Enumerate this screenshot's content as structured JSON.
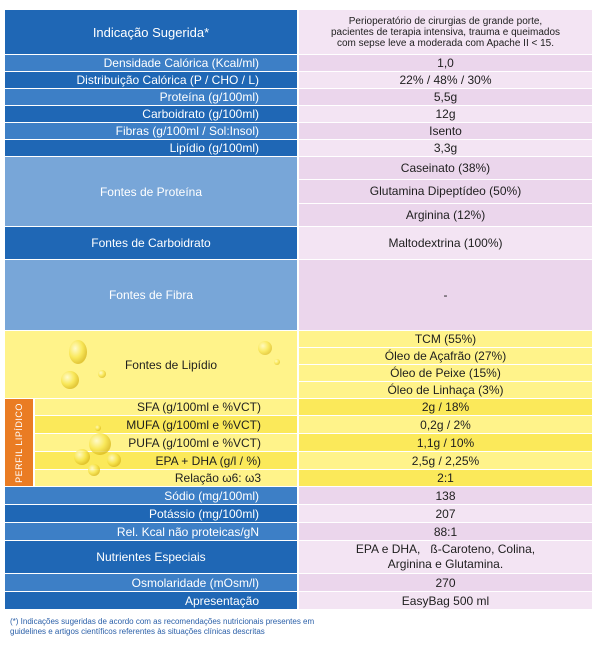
{
  "colors": {
    "label_blue_dark": "#1f67b5",
    "label_blue_mid": "#3d7fc6",
    "label_blue_light": "#78a6d8",
    "value_pink": "#f3e4f3",
    "value_pink_alt": "#ebd6ec",
    "lipid_yellow": "#fff38a",
    "lipid_yellow_dark": "#fbe95a",
    "perfil_orange": "#ea7c23"
  },
  "rows": {
    "indicacao": {
      "label": "Indicação Sugerida*",
      "lines": [
        "Perioperatório de cirurgias de grande porte,",
        "pacientes de terapia intensiva, trauma e queimados",
        "com sepse leve a moderada com Apache II < 15."
      ]
    },
    "densidade": {
      "label": "Densidade Calórica (Kcal/ml)",
      "value": "1,0"
    },
    "distribuicao": {
      "label": "Distribuição Calórica (P / CHO / L)",
      "value": "22% / 48% / 30%"
    },
    "proteina": {
      "label": "Proteína (g/100ml)",
      "value": "5,5g"
    },
    "carboidrato": {
      "label": "Carboidrato (g/100ml)",
      "value": "12g"
    },
    "fibras": {
      "label": "Fibras (g/100ml / Sol:Insol)",
      "value": "Isento"
    },
    "lipidio": {
      "label": "Lipídio (g/100ml)",
      "value": "3,3g"
    },
    "fontes_proteina": {
      "label": "Fontes de Proteína",
      "items": [
        "Caseinato (38%)",
        "Glutamina Dipeptídeo (50%)",
        "Arginina (12%)"
      ]
    },
    "fontes_carboidrato": {
      "label": "Fontes de Carboidrato",
      "value": "Maltodextrina (100%)"
    },
    "fontes_fibra": {
      "label": "Fontes de Fibra",
      "value": "-"
    },
    "fontes_lipidio": {
      "label": "Fontes de Lipídio",
      "items": [
        "TCM (55%)",
        "Óleo de Açafrão (27%)",
        "Óleo de Peixe (15%)",
        "Óleo de Linhaça (3%)"
      ]
    },
    "sfa": {
      "label": "SFA (g/100ml e %VCT)",
      "value": "2g / 18%"
    },
    "mufa": {
      "label": "MUFA (g/100ml e %VCT)",
      "value": "0,2g / 2%"
    },
    "pufa": {
      "label": "PUFA (g/100ml e %VCT)",
      "value": "1,1g / 10%"
    },
    "epa": {
      "label": "EPA + DHA (g/l / %)",
      "value": "2,5g / 2,25%"
    },
    "relacao": {
      "label": "Relação ω6: ω3",
      "value": "2:1"
    },
    "sodio": {
      "label": "Sódio (mg/100ml)",
      "value": "138"
    },
    "potassio": {
      "label": "Potássio (mg/100ml)",
      "value": "207"
    },
    "rel_kcal": {
      "label": "Rel. Kcal não proteicas/gN",
      "value": "88:1"
    },
    "nutrientes": {
      "label": "Nutrientes Especiais",
      "lines": [
        "EPA e DHA,   ß-Caroteno, Colina,",
        "Arginina e Glutamina."
      ]
    },
    "osmolaridade": {
      "label": "Osmolaridade (mOsm/l)",
      "value": "270"
    },
    "apresentacao": {
      "label": "Apresentação",
      "value": "EasyBag 500 ml"
    }
  },
  "perfil_label": "PERFIL LIPÍDICO",
  "footnote": "(*) Indicações sugeridas de acordo com as recomendações nutricionais presentes em guidelines e artigos científicos referentes às situações clínicas descritas"
}
